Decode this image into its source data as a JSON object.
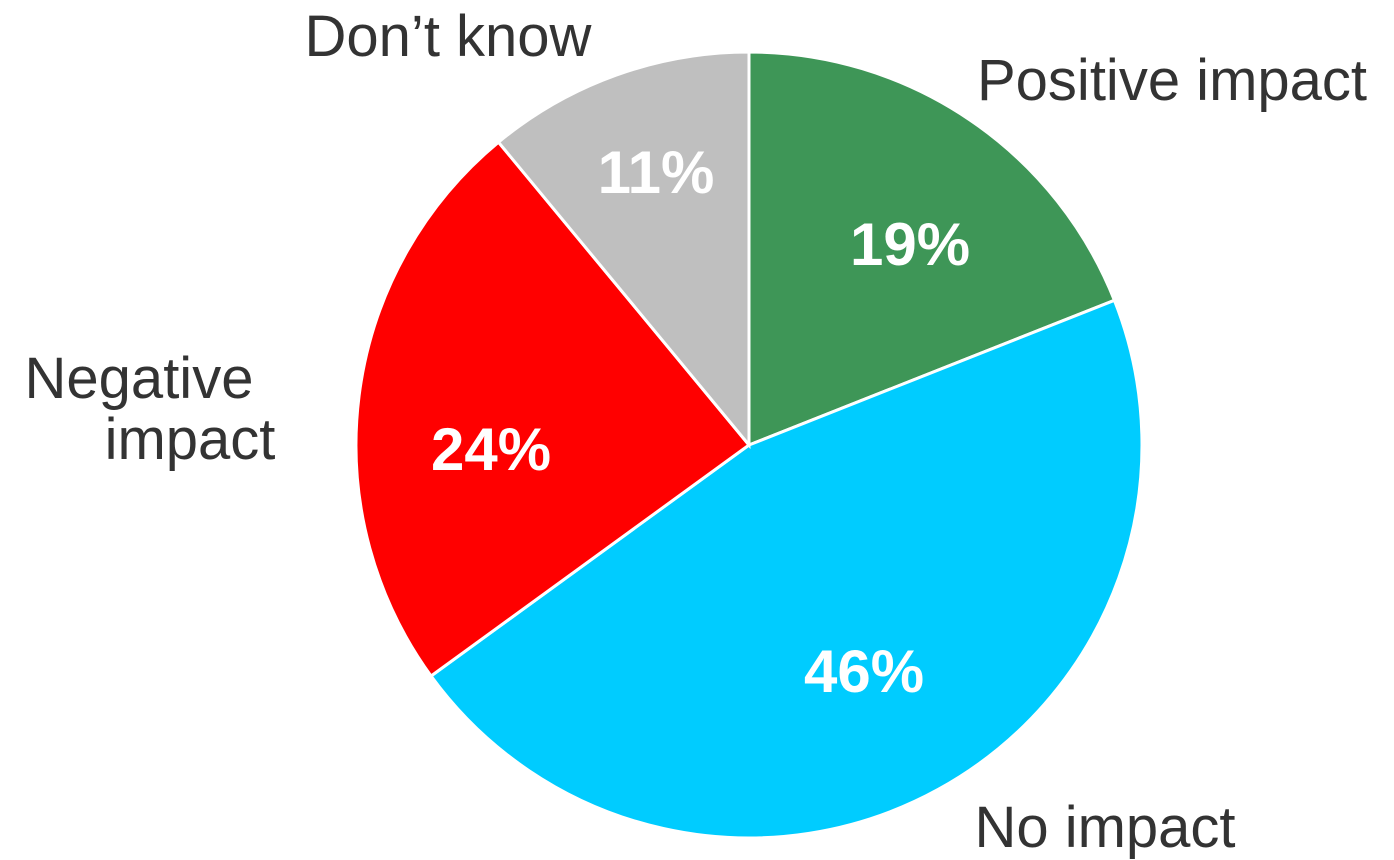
{
  "chart_data": {
    "type": "pie",
    "title": "",
    "slices": [
      {
        "label": "Positive impact",
        "value": 19,
        "display": "19%",
        "color": "#3e9657"
      },
      {
        "label": "No impact",
        "value": 46,
        "display": "46%",
        "color": "#00ccff"
      },
      {
        "label": "Negative impact",
        "label_lines": [
          "Negative",
          "impact"
        ],
        "value": 24,
        "display": "24%",
        "color": "#ff0000"
      },
      {
        "label": "Don’t know",
        "value": 11,
        "display": "11%",
        "color": "#bfbfbf"
      }
    ],
    "start": "12 o'clock",
    "direction": "clockwise",
    "legend": "none (category labels placed outside slices)"
  }
}
